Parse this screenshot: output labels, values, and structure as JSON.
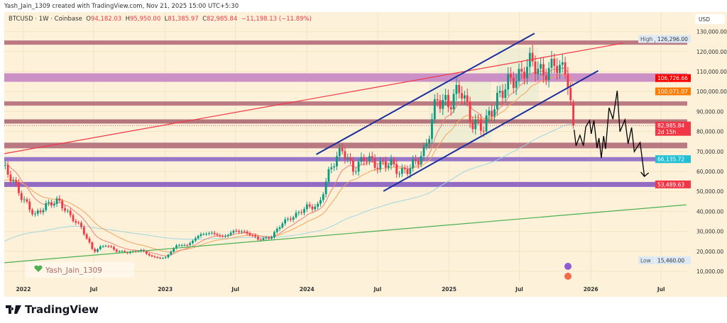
{
  "credit": "Yash_Jain_1309 created with TradingView.com, Nov 21, 2025 15:00 UTC+5:30",
  "ohlc": {
    "symbol": "BTCUSD · 1W · Coinbase",
    "o_label": "O",
    "o": "94,182.03",
    "h_label": "H",
    "h": "95,950.00",
    "l_label": "L",
    "l": "81,385.97",
    "c_label": "C",
    "c": "82,985.84",
    "change": "−11,198.13 (−11.89%)"
  },
  "watermark": "Yash_Jain_1309",
  "footer": "TradingView",
  "colors": {
    "bg": "#fdf1d9",
    "up": "#089981",
    "down": "#f23645",
    "ema_fast": "#f0807a",
    "ema_mid": "#f5a55a",
    "ema_slow": "#9fd6df",
    "channel": "#1a2fa0",
    "trend_red": "#f23645",
    "trend_green": "#4caf50",
    "projection": "#000000"
  },
  "chart_data": {
    "type": "candlestick",
    "symbol": "BTCUSD",
    "interval": "1W",
    "currency": "USD",
    "y_scale": "linear",
    "ylim": [
      5000,
      138000
    ],
    "yticks": [
      "130,000.00",
      "120,000.00",
      "110,000.00",
      "100,000.00",
      "90,000.00",
      "80,000.00",
      "70,000.00",
      "60,000.00",
      "50,000.00",
      "40,000.00",
      "30,000.00",
      "20,000.00",
      "10,000.00"
    ],
    "ytick_values": [
      130000,
      120000,
      110000,
      100000,
      90000,
      80000,
      70000,
      60000,
      50000,
      40000,
      30000,
      20000,
      10000
    ],
    "xticks": [
      {
        "label": "2022",
        "date": "2022-01-01"
      },
      {
        "label": "Jul",
        "date": "2022-07-01"
      },
      {
        "label": "2023",
        "date": "2023-01-01"
      },
      {
        "label": "Jul",
        "date": "2023-07-01"
      },
      {
        "label": "2024",
        "date": "2024-01-01"
      },
      {
        "label": "Jul",
        "date": "2024-07-01"
      },
      {
        "label": "2025",
        "date": "2025-01-01"
      },
      {
        "label": "Jul",
        "date": "2025-07-01"
      },
      {
        "label": "2026",
        "date": "2026-01-01"
      },
      {
        "label": "Jul",
        "date": "2026-07-01"
      }
    ],
    "approx_monthly_closes": [
      [
        "2021-10-25",
        66000
      ],
      [
        "2021-11-30",
        57000
      ],
      [
        "2021-12-31",
        46000
      ],
      [
        "2022-01-31",
        38000
      ],
      [
        "2022-02-28",
        43000
      ],
      [
        "2022-03-31",
        45500
      ],
      [
        "2022-04-30",
        38000
      ],
      [
        "2022-05-31",
        31700
      ],
      [
        "2022-06-30",
        19900
      ],
      [
        "2022-07-31",
        23300
      ],
      [
        "2022-08-31",
        20000
      ],
      [
        "2022-09-30",
        19400
      ],
      [
        "2022-10-31",
        20500
      ],
      [
        "2022-11-30",
        17100
      ],
      [
        "2022-12-31",
        16500
      ],
      [
        "2023-01-31",
        23100
      ],
      [
        "2023-02-28",
        23100
      ],
      [
        "2023-03-31",
        28400
      ],
      [
        "2023-04-30",
        29200
      ],
      [
        "2023-05-31",
        27200
      ],
      [
        "2023-06-30",
        30400
      ],
      [
        "2023-07-31",
        29200
      ],
      [
        "2023-08-31",
        25900
      ],
      [
        "2023-09-30",
        26900
      ],
      [
        "2023-10-31",
        34600
      ],
      [
        "2023-11-30",
        37700
      ],
      [
        "2023-12-31",
        42200
      ],
      [
        "2024-01-31",
        42500
      ],
      [
        "2024-02-29",
        61100
      ],
      [
        "2024-03-31",
        71300
      ],
      [
        "2024-04-30",
        60600
      ],
      [
        "2024-05-31",
        67500
      ],
      [
        "2024-06-30",
        62700
      ],
      [
        "2024-07-31",
        64600
      ],
      [
        "2024-08-31",
        58900
      ],
      [
        "2024-09-30",
        63300
      ],
      [
        "2024-10-31",
        70200
      ],
      [
        "2024-11-30",
        96400
      ],
      [
        "2024-12-31",
        93400
      ],
      [
        "2025-01-31",
        102400
      ],
      [
        "2025-02-28",
        84300
      ],
      [
        "2025-03-31",
        82500
      ],
      [
        "2025-04-30",
        94200
      ],
      [
        "2025-05-31",
        104600
      ],
      [
        "2025-06-30",
        107100
      ],
      [
        "2025-07-31",
        115700
      ],
      [
        "2025-08-31",
        108200
      ],
      [
        "2025-09-30",
        114000
      ],
      [
        "2025-10-31",
        109500
      ],
      [
        "2025-11-10",
        94182
      ],
      [
        "2025-11-17",
        82985.84
      ]
    ],
    "last": {
      "open": 94182.03,
      "high": 95950.0,
      "low": 81385.97,
      "close": 82985.84
    },
    "price_labels": [
      {
        "text": "126,296.00",
        "tag": "High",
        "value": 126296,
        "bg": "#dde8f5",
        "fg": "#333"
      },
      {
        "text": "106,726.66",
        "value": 106726.66,
        "bg": "#ff0000",
        "fg": "#fff"
      },
      {
        "text": "100,071.07",
        "value": 100071.07,
        "bg": "#ff7a00",
        "fg": "#fff"
      },
      {
        "text": "82,985.84",
        "sub": "2d 15h",
        "value": 82985.84,
        "bg": "#f23645",
        "fg": "#fff"
      },
      {
        "text": "66,135.72",
        "value": 66135.72,
        "bg": "#22c0d4",
        "fg": "#fff"
      },
      {
        "text": "53,489.63",
        "value": 53489.63,
        "bg": "#f23645",
        "fg": "#fff"
      },
      {
        "text": "15,460.00",
        "tag": "Low",
        "value": 15460,
        "bg": "#dde8f5",
        "fg": "#333"
      }
    ],
    "zones": [
      {
        "price": 124500,
        "color": "#b7737f",
        "w": 6
      },
      {
        "price": 107000,
        "color": "#c98bc6",
        "w": 12
      },
      {
        "price": 94000,
        "color": "#b87480",
        "w": 6
      },
      {
        "price": 85000,
        "color": "#b07079",
        "w": 6
      },
      {
        "price": 73000,
        "color": "#b5737f",
        "w": 8
      },
      {
        "price": 66135.72,
        "color": "#9370c8",
        "w": 6
      },
      {
        "price": 53489.63,
        "color": "#8d64c4",
        "w": 7
      }
    ],
    "channel_upper": [
      [
        "2024-01-25",
        68500
      ],
      [
        "2025-08-09",
        129100
      ]
    ],
    "channel_lower": [
      [
        "2024-07-16",
        50100
      ],
      [
        "2026-01-20",
        110400
      ]
    ],
    "trend_red": [
      [
        "2021-11-13",
        68900
      ],
      [
        "2026-03-25",
        124200
      ]
    ],
    "trend_green": [
      [
        "2021-11-13",
        14300
      ],
      [
        "2026-09-04",
        43300
      ]
    ],
    "projection": [
      [
        "2025-11-19",
        80900
      ],
      [
        "2025-11-24",
        72800
      ],
      [
        "2025-12-04",
        78100
      ],
      [
        "2025-12-13",
        72800
      ],
      [
        "2025-12-19",
        82300
      ],
      [
        "2025-12-29",
        85500
      ],
      [
        "2026-01-02",
        78800
      ],
      [
        "2026-01-09",
        85500
      ],
      [
        "2026-01-17",
        71700
      ],
      [
        "2026-01-22",
        76700
      ],
      [
        "2026-01-28",
        66700
      ],
      [
        "2026-02-03",
        77700
      ],
      [
        "2026-02-08",
        71300
      ],
      [
        "2026-02-17",
        91900
      ],
      [
        "2026-02-27",
        86200
      ],
      [
        "2026-03-10",
        100400
      ],
      [
        "2026-03-17",
        79900
      ],
      [
        "2026-03-30",
        85900
      ],
      [
        "2026-04-07",
        73800
      ],
      [
        "2026-04-16",
        82000
      ],
      [
        "2026-04-23",
        69900
      ],
      [
        "2026-05-08",
        74500
      ],
      [
        "2026-05-19",
        57500
      ]
    ]
  }
}
